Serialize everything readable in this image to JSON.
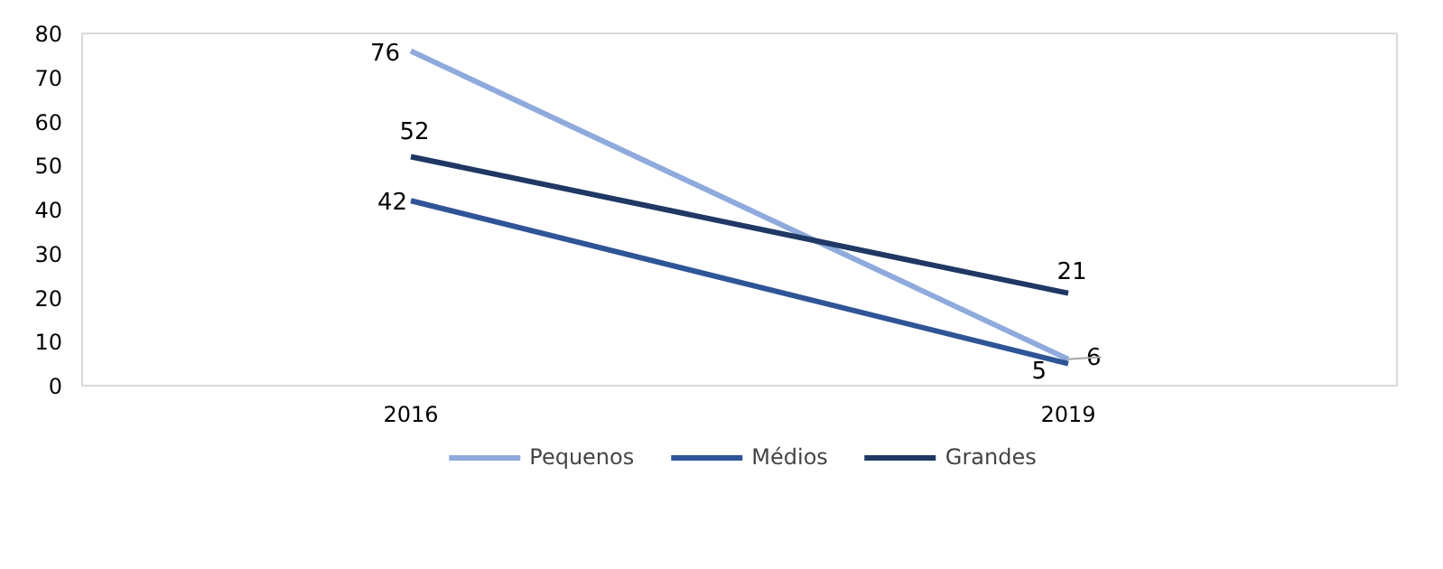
{
  "chart_data": {
    "type": "line",
    "categories": [
      "2016",
      "2019"
    ],
    "series": [
      {
        "name": "Pequenos",
        "color": "#8faadc",
        "values": [
          76,
          6
        ]
      },
      {
        "name": "Médios",
        "color": "#2f5597",
        "values": [
          42,
          5
        ]
      },
      {
        "name": "Grandes",
        "color": "#1f3864",
        "values": [
          52,
          21
        ]
      }
    ],
    "ylim": [
      0,
      80
    ],
    "yticks": [
      0,
      10,
      20,
      30,
      40,
      50,
      60,
      70,
      80
    ],
    "data_labels": true,
    "legend": "bottom",
    "grid": false,
    "marker": "none",
    "line_style": "solid"
  }
}
